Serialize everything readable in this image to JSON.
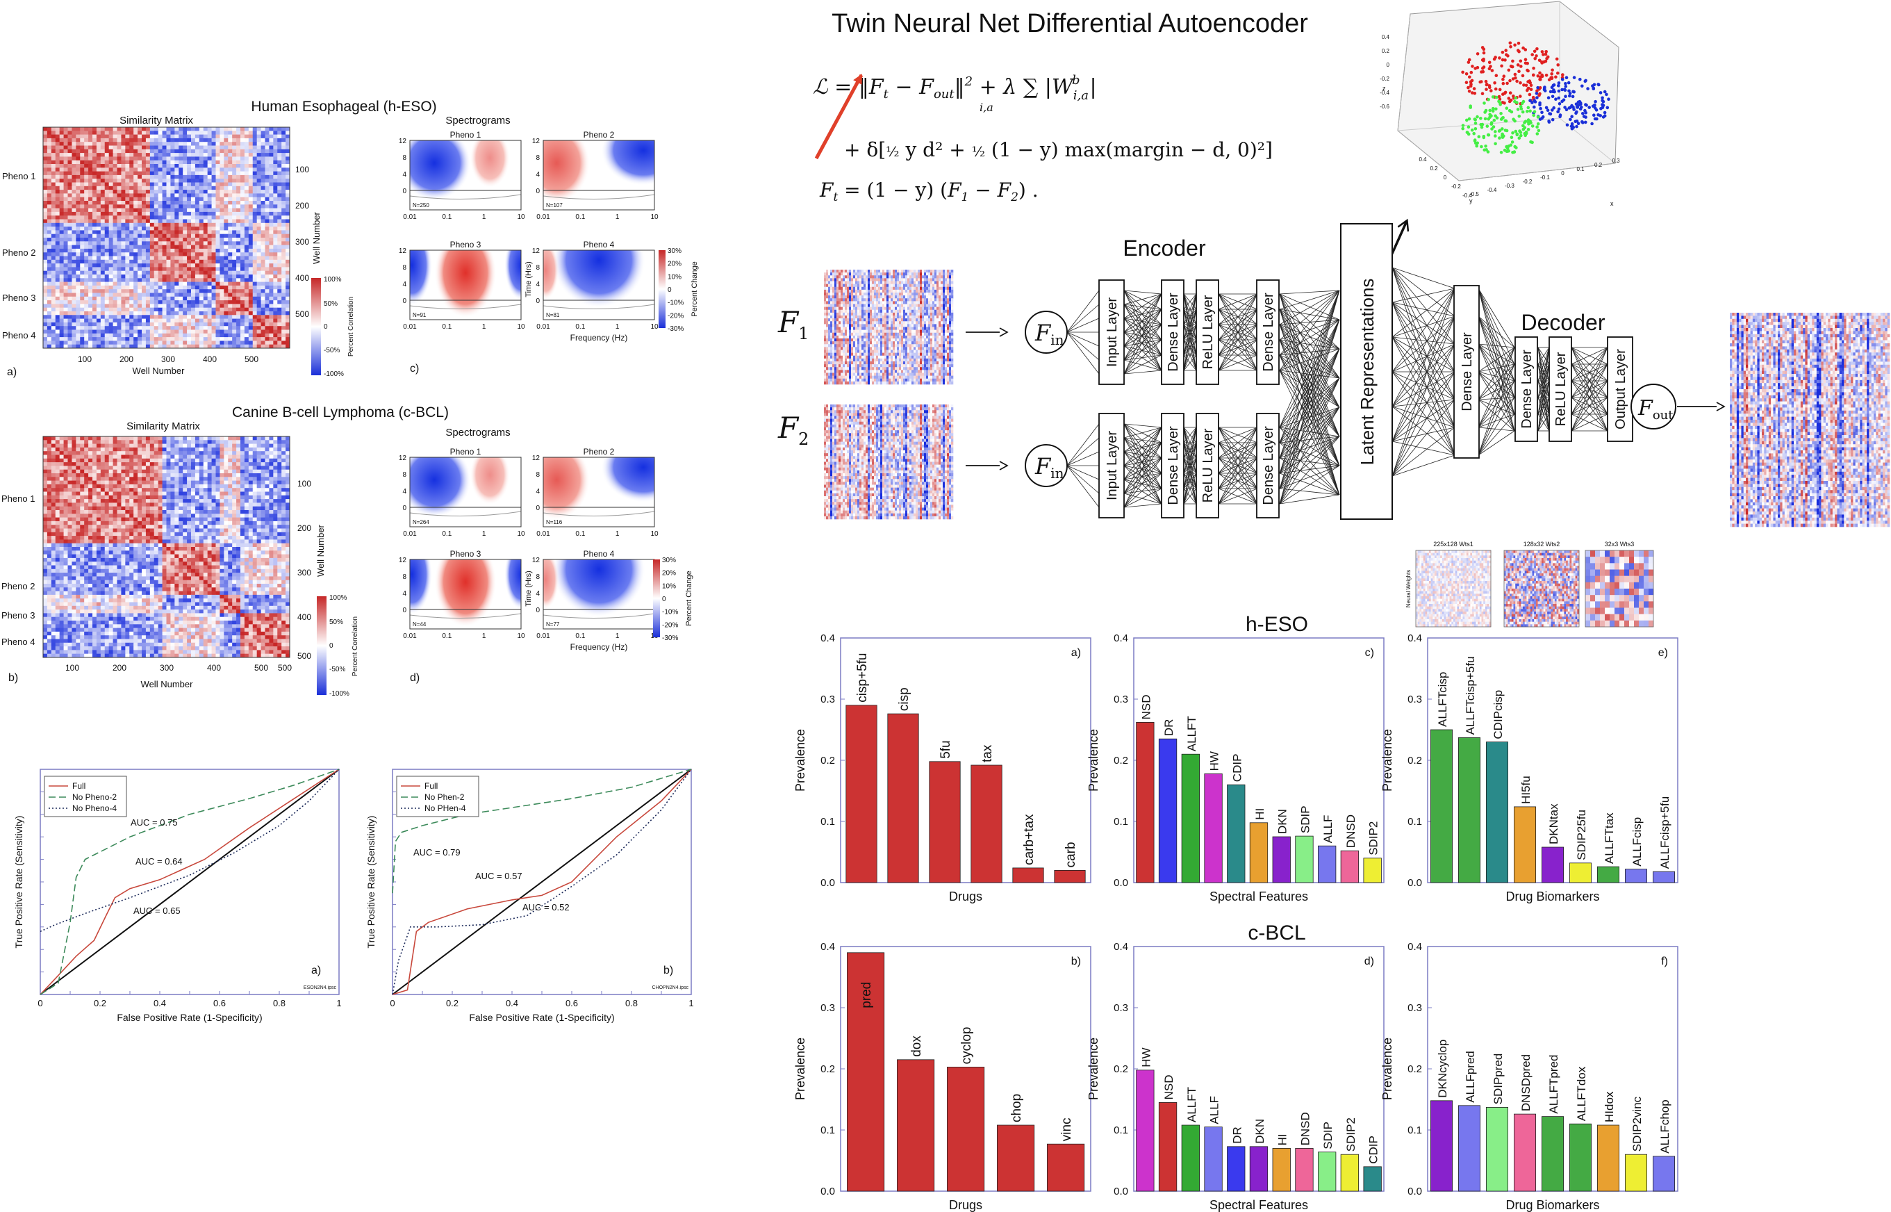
{
  "hESO": {
    "title": "Human Esophageal (h-ESO)",
    "sim_title": "Similarity Matrix",
    "pheno_labels": [
      "Pheno 1",
      "Pheno 2",
      "Pheno 3",
      "Pheno 4"
    ],
    "x_ticks": [
      "100",
      "200",
      "300",
      "400",
      "500"
    ],
    "y_ticks": [
      "100",
      "200",
      "300",
      "400",
      "500"
    ],
    "xlabel": "Well Number",
    "ylabel": "Well Number",
    "colorbar_ticks": [
      "100%",
      "50%",
      "0",
      "-50%",
      "-100%"
    ],
    "colorbar_label": "Percent Correlation",
    "panel_sim": "a)",
    "spec_title": "Spectrograms",
    "panel_spec": "c)",
    "spec_panels": [
      {
        "title": "Pheno 1",
        "n": "N=250"
      },
      {
        "title": "Pheno 2",
        "n": "N=107"
      },
      {
        "title": "Pheno 3",
        "n": "N=91"
      },
      {
        "title": "Pheno 4",
        "n": "N=81"
      }
    ]
  },
  "cBCL": {
    "title": "Canine B-cell Lymphoma (c-BCL)",
    "sim_title": "Similarity Matrix",
    "pheno_labels": [
      "Pheno 1",
      "Pheno 2",
      "Pheno 3",
      "Pheno 4"
    ],
    "x_ticks": [
      "100",
      "200",
      "300",
      "400",
      "500"
    ],
    "y_ticks": [
      "100",
      "200",
      "300",
      "400",
      "500"
    ],
    "xlabel": "Well Number",
    "ylabel": "Well Number",
    "colorbar_ticks": [
      "100%",
      "50%",
      "0",
      "-50%",
      "-100%"
    ],
    "colorbar_label": "Percent Correlation",
    "panel_sim": "b)",
    "spec_title": "Spectrograms",
    "panel_spec": "d)",
    "spec_panels": [
      {
        "title": "Pheno 1",
        "n": "N=264"
      },
      {
        "title": "Pheno 2",
        "n": "N=116"
      },
      {
        "title": "Pheno 3",
        "n": "N=44"
      },
      {
        "title": "Pheno 4",
        "n": "N=77"
      }
    ]
  },
  "spec_common": {
    "y_ticks": [
      "12",
      "8",
      "4",
      "0"
    ],
    "x_ticks": [
      "0.01",
      "0.1",
      "1",
      "10"
    ],
    "ylabel": "Time (Hrs)",
    "xlabel": "Frequency (Hz)",
    "colorbar_ticks": [
      "30%",
      "20%",
      "10%",
      "0",
      "-10%",
      "-20%",
      "-30%"
    ],
    "colorbar_label": "Percent Change"
  },
  "roc": [
    {
      "panel": "a)",
      "file": "ESON2N4.ipsc",
      "legend": [
        "Full",
        "No Pheno-2",
        "No Pheno-4"
      ],
      "auc_labels": [
        "AUC = 0.75",
        "AUC = 0.64",
        "AUC = 0.65"
      ],
      "xlabel": "False Positive Rate (1-Specificity)",
      "ylabel": "True Positive Rate (Sensitivity)",
      "ticks": [
        "0",
        "0.2",
        "0.4",
        "0.6",
        "0.8",
        "1"
      ]
    },
    {
      "panel": "b)",
      "file": "CHOPN2N4.ipsc",
      "legend": [
        "Full",
        "No Phen-2",
        "No PHen-4"
      ],
      "auc_labels": [
        "AUC = 0.79",
        "AUC = 0.57",
        "AUC = 0.52"
      ],
      "xlabel": "False Positive Rate (1-Specificity)",
      "ylabel": "True Positive Rate (Sensitivity)",
      "ticks": [
        "0",
        "0.2",
        "0.4",
        "0.6",
        "0.8",
        "1"
      ]
    }
  ],
  "network": {
    "title": "Twin Neural Net Differential Autoencoder",
    "encoder": "Encoder",
    "decoder": "Decoder",
    "f1": "F",
    "f1_sub": "1",
    "f2": "F",
    "f2_sub": "2",
    "fin": "F",
    "fin_sub": "in",
    "fout": "F",
    "fout_sub": "out",
    "encoder_layers": [
      "Input Layer",
      "Dense Layer",
      "ReLU Layer",
      "Dense Layer"
    ],
    "latent": "Latent Representations",
    "decoder_layers": [
      "Dense Layer",
      "Dense Layer",
      "ReLU Layer",
      "Output Layer"
    ],
    "weights_labels": [
      "225x128 Wts1",
      "128x32 Wts2",
      "32x3 Wts3"
    ],
    "weights_ylabel": "Neural Weights",
    "scatter3d": {
      "z_ticks": [
        "0.4",
        "0.2",
        "0",
        "-0.2",
        "-0.4",
        "-0.6"
      ],
      "y_ticks": [
        "0.4",
        "0.2",
        "0",
        "-0.2",
        "-0.4"
      ],
      "x_ticks": [
        "-0.5",
        "-0.4",
        "-0.3",
        "-0.2",
        "-0.1",
        "0",
        "0.1",
        "0.2",
        "0.3"
      ],
      "xlabel": "x",
      "ylabel": "y",
      "zlabel": "z"
    }
  },
  "bars_section_titles": [
    "h-ESO",
    "c-BCL"
  ],
  "chart_data": [
    {
      "type": "bar",
      "panel": "a)",
      "xlabel": "Drugs",
      "ylabel": "Prevalence",
      "ylim": [
        0,
        0.4
      ],
      "yticks": [
        "0.0",
        "0.1",
        "0.2",
        "0.3",
        "0.4"
      ],
      "categories": [
        "cisp+5fu",
        "cisp",
        "5fu",
        "tax",
        "carb+tax",
        "carb"
      ],
      "values": [
        0.29,
        0.276,
        0.198,
        0.192,
        0.024,
        0.02
      ],
      "colors": [
        "#cc3333",
        "#cc3333",
        "#cc3333",
        "#cc3333",
        "#cc3333",
        "#cc3333"
      ]
    },
    {
      "type": "bar",
      "panel": "c)",
      "xlabel": "Spectral Features",
      "ylabel": "Prevalence",
      "ylim": [
        0,
        0.4
      ],
      "yticks": [
        "0.0",
        "0.1",
        "0.2",
        "0.3",
        "0.4"
      ],
      "categories": [
        "NSD",
        "DR",
        "ALLFT",
        "HW",
        "CDIP",
        "HI",
        "DKN",
        "SDIP",
        "ALLF",
        "DNSD",
        "SDIP2"
      ],
      "values": [
        0.262,
        0.235,
        0.21,
        0.178,
        0.16,
        0.098,
        0.075,
        0.076,
        0.06,
        0.052,
        0.04
      ],
      "colors": [
        "#cc3333",
        "#3a3aee",
        "#33aa33",
        "#cc33cc",
        "#2a8a8a",
        "#e8a030",
        "#8822cc",
        "#88ee88",
        "#7777ee",
        "#ee6699",
        "#eeee33"
      ]
    },
    {
      "type": "bar",
      "panel": "e)",
      "xlabel": "Drug Biomarkers",
      "ylabel": "Prevalence",
      "ylim": [
        0,
        0.4
      ],
      "yticks": [
        "0.0",
        "0.1",
        "0.2",
        "0.3",
        "0.4"
      ],
      "categories": [
        "ALLFTcisp",
        "ALLFTcisp+5fu",
        "CDIPcisp",
        "HI5fu",
        "DKNtax",
        "SDIP25fu",
        "ALLFTtax",
        "ALLFcisp",
        "ALLFcisp+5fu"
      ],
      "values": [
        0.25,
        0.237,
        0.23,
        0.124,
        0.058,
        0.032,
        0.026,
        0.022,
        0.018
      ],
      "colors": [
        "#44aa44",
        "#44aa44",
        "#2a8a8a",
        "#e8a030",
        "#8822cc",
        "#eeee33",
        "#44aa44",
        "#7777ee",
        "#7777ee"
      ]
    },
    {
      "type": "bar",
      "panel": "b)",
      "xlabel": "Drugs",
      "ylabel": "Prevalence",
      "ylim": [
        0,
        0.4
      ],
      "yticks": [
        "0.0",
        "0.1",
        "0.2",
        "0.3",
        "0.4"
      ],
      "categories": [
        "pred",
        "dox",
        "cyclop",
        "chop",
        "vinc"
      ],
      "values": [
        0.39,
        0.215,
        0.203,
        0.108,
        0.077
      ],
      "colors": [
        "#cc3333",
        "#cc3333",
        "#cc3333",
        "#cc3333",
        "#cc3333"
      ]
    },
    {
      "type": "bar",
      "panel": "d)",
      "xlabel": "Spectral Features",
      "ylabel": "Prevalence",
      "ylim": [
        0,
        0.4
      ],
      "yticks": [
        "0.0",
        "0.1",
        "0.2",
        "0.3",
        "0.4"
      ],
      "categories": [
        "HW",
        "NSD",
        "ALLFT",
        "ALLF",
        "DR",
        "DKN",
        "HI",
        "DNSD",
        "SDIP",
        "SDIP2",
        "CDIP"
      ],
      "values": [
        0.198,
        0.145,
        0.108,
        0.105,
        0.073,
        0.073,
        0.07,
        0.07,
        0.064,
        0.06,
        0.04
      ],
      "colors": [
        "#cc33cc",
        "#cc3333",
        "#33aa33",
        "#7777ee",
        "#3a3aee",
        "#8822cc",
        "#e8a030",
        "#ee6699",
        "#88ee88",
        "#eeee33",
        "#2a8a8a"
      ]
    },
    {
      "type": "bar",
      "panel": "f)",
      "xlabel": "Drug Biomarkers",
      "ylabel": "Prevalence",
      "ylim": [
        0,
        0.4
      ],
      "yticks": [
        "0.0",
        "0.1",
        "0.2",
        "0.3",
        "0.4"
      ],
      "categories": [
        "DKNcyclop",
        "ALLFpred",
        "SDIPpred",
        "DNSDpred",
        "ALLFTpred",
        "ALLFTdox",
        "HIdox",
        "SDIP2vinc",
        "ALLFchop"
      ],
      "values": [
        0.148,
        0.14,
        0.137,
        0.126,
        0.122,
        0.11,
        0.108,
        0.06,
        0.057
      ],
      "colors": [
        "#8822cc",
        "#7777ee",
        "#88ee88",
        "#ee6699",
        "#44aa44",
        "#44aa44",
        "#e8a030",
        "#eeee33",
        "#7777ee"
      ]
    }
  ]
}
